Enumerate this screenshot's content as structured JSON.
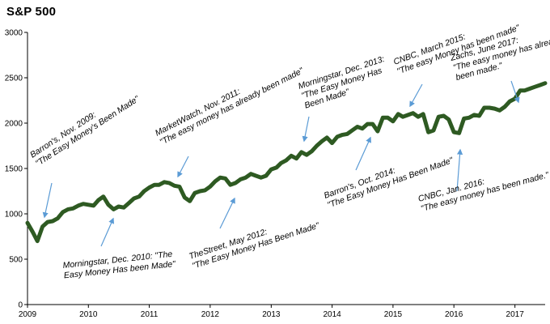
{
  "chart_data": {
    "type": "line",
    "title": "S&P 500",
    "xlabel": "",
    "ylabel": "",
    "ylim": [
      0,
      3000
    ],
    "xlim": [
      "2009-01-01",
      "2017-07-01"
    ],
    "y_ticks": [
      "0",
      "500",
      "1000",
      "1500",
      "2000",
      "2500",
      "3000"
    ],
    "x_ticks": [
      "2009",
      "2010",
      "2011",
      "2012",
      "2013",
      "2014",
      "2015",
      "2016",
      "2017"
    ],
    "grid": false,
    "line_color": "#2e5a22",
    "series": [
      {
        "x": [
          "2009-01-01",
          "2009-02-01",
          "2009-03-01",
          "2009-04-01",
          "2009-05-01",
          "2009-06-01",
          "2009-07-01",
          "2009-08-01",
          "2009-09-01",
          "2009-10-01",
          "2009-11-01",
          "2009-12-01",
          "2010-01-01",
          "2010-02-01",
          "2010-03-01",
          "2010-04-01",
          "2010-05-01",
          "2010-06-01",
          "2010-07-01",
          "2010-08-01",
          "2010-09-01",
          "2010-10-01",
          "2010-11-01",
          "2010-12-01",
          "2011-01-01",
          "2011-02-01",
          "2011-03-01",
          "2011-04-01",
          "2011-05-01",
          "2011-06-01",
          "2011-07-01",
          "2011-08-01",
          "2011-09-01",
          "2011-10-01",
          "2011-11-01",
          "2011-12-01",
          "2012-01-01",
          "2012-02-01",
          "2012-03-01",
          "2012-04-01",
          "2012-05-01",
          "2012-06-01",
          "2012-07-01",
          "2012-08-01",
          "2012-09-01",
          "2012-10-01",
          "2012-11-01",
          "2012-12-01",
          "2013-01-01",
          "2013-02-01",
          "2013-03-01",
          "2013-04-01",
          "2013-05-01",
          "2013-06-01",
          "2013-07-01",
          "2013-08-01",
          "2013-09-01",
          "2013-10-01",
          "2013-11-01",
          "2013-12-01",
          "2014-01-01",
          "2014-02-01",
          "2014-03-01",
          "2014-04-01",
          "2014-05-01",
          "2014-06-01",
          "2014-07-01",
          "2014-08-01",
          "2014-09-01",
          "2014-10-01",
          "2014-11-01",
          "2014-12-01",
          "2015-01-01",
          "2015-02-01",
          "2015-03-01",
          "2015-04-01",
          "2015-05-01",
          "2015-06-01",
          "2015-07-01",
          "2015-08-01",
          "2015-09-01",
          "2015-10-01",
          "2015-11-01",
          "2015-12-01",
          "2016-01-01",
          "2016-02-01",
          "2016-03-01",
          "2016-04-01",
          "2016-05-01",
          "2016-06-01",
          "2016-07-01",
          "2016-08-01",
          "2016-09-01",
          "2016-10-01",
          "2016-11-01",
          "2016-12-01",
          "2017-01-01",
          "2017-02-01",
          "2017-03-01",
          "2017-04-01",
          "2017-05-01",
          "2017-06-01",
          "2017-07-01"
        ],
        "y": [
          900,
          800,
          700,
          860,
          910,
          920,
          950,
          1020,
          1050,
          1060,
          1090,
          1110,
          1100,
          1090,
          1150,
          1190,
          1100,
          1050,
          1080,
          1070,
          1120,
          1170,
          1190,
          1250,
          1290,
          1320,
          1320,
          1350,
          1340,
          1310,
          1300,
          1180,
          1140,
          1230,
          1250,
          1260,
          1300,
          1360,
          1400,
          1390,
          1320,
          1340,
          1380,
          1400,
          1440,
          1420,
          1400,
          1420,
          1490,
          1510,
          1560,
          1590,
          1640,
          1610,
          1680,
          1650,
          1690,
          1750,
          1800,
          1840,
          1780,
          1850,
          1870,
          1880,
          1920,
          1960,
          1940,
          1990,
          1990,
          1910,
          2060,
          2060,
          2020,
          2100,
          2070,
          2090,
          2110,
          2070,
          2100,
          1900,
          1920,
          2070,
          2080,
          2040,
          1900,
          1890,
          2050,
          2060,
          2090,
          2080,
          2170,
          2170,
          2160,
          2140,
          2180,
          2240,
          2270,
          2360,
          2360,
          2380,
          2400,
          2420,
          2440
        ]
      }
    ],
    "annotations": [
      {
        "id": "barrons-2009",
        "lines": [
          "Barron's, Nov. 2009:",
          "\"The Easy Money's Been Made\""
        ]
      },
      {
        "id": "morningstar-2010",
        "lines": [
          "Morningstar, Dec. 2010: \"The",
          "Easy Money Has been Made\""
        ]
      },
      {
        "id": "marketwatch-2011",
        "lines": [
          "MarketWatch, Nov. 2011:",
          "\"The easy money has already been made\""
        ]
      },
      {
        "id": "thestreet-2012",
        "lines": [
          "TheStreet, May 2012:",
          "\"The Easy Money Has Been Made\""
        ]
      },
      {
        "id": "morningstar-2013",
        "lines": [
          "Morningstar, Dec. 2013:",
          "\"The Easy Money Has",
          "Been Made\""
        ]
      },
      {
        "id": "barrons-2014",
        "lines": [
          "Barron's, Oct. 2014:",
          "\"The Easy Money Has Been Made\""
        ]
      },
      {
        "id": "cnbc-2015",
        "lines": [
          "CNBC, March 2015:",
          "\"The easy Money has been made\""
        ]
      },
      {
        "id": "cnbc-2016",
        "lines": [
          "CNBC, Jan. 2016:",
          "\"The easy money has been made.\""
        ]
      },
      {
        "id": "zachs-2017",
        "lines": [
          "Zachs, June 2017:",
          "\"The easy money has already",
          "been made.\""
        ]
      }
    ]
  }
}
